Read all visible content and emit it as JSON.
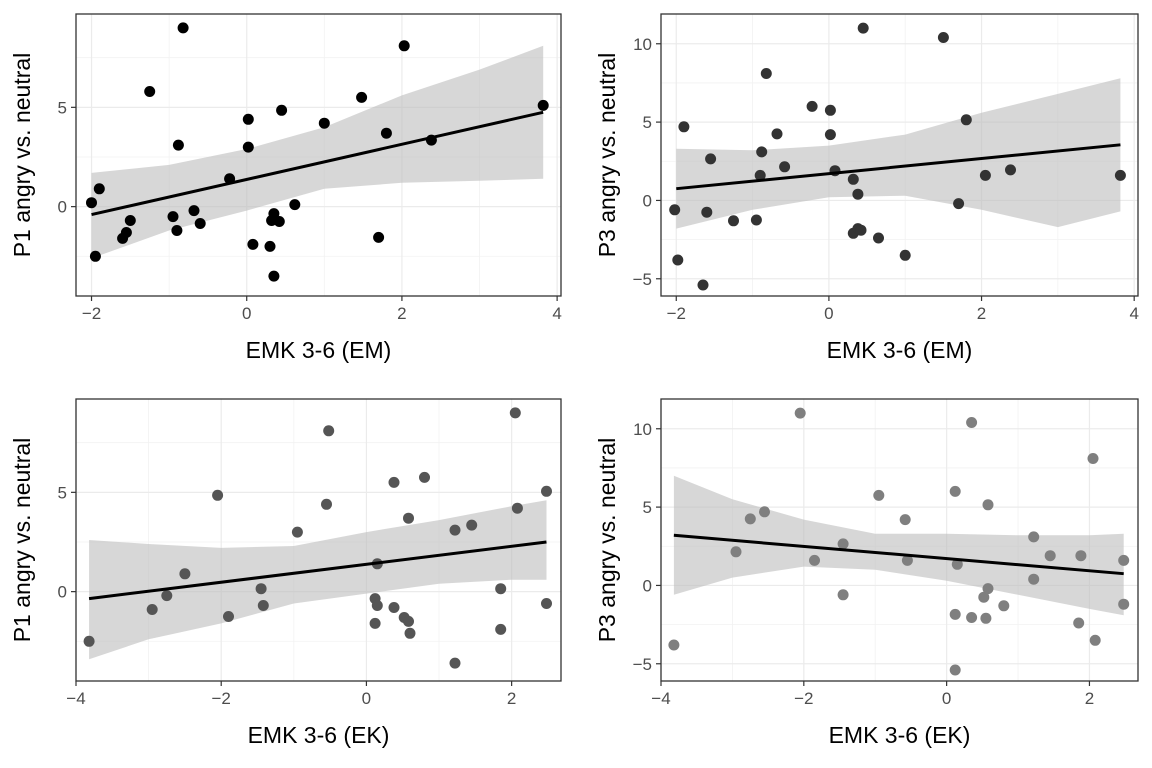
{
  "chart_data": [
    {
      "type": "scatter",
      "xlabel": "EMK 3-6 (EM)",
      "ylabel": "P1 angry vs. neutral",
      "xlim": [
        -2.2,
        4.05
      ],
      "ylim": [
        -4.5,
        9.7
      ],
      "xticks": [
        -2,
        0,
        2,
        4
      ],
      "yticks": [
        0,
        5
      ],
      "grid": true,
      "point_color": "#000000",
      "points": [
        [
          -2.0,
          0.2
        ],
        [
          -1.95,
          -2.5
        ],
        [
          -1.9,
          0.9
        ],
        [
          -1.6,
          -1.6
        ],
        [
          -1.55,
          -1.3
        ],
        [
          -1.5,
          -0.7
        ],
        [
          -1.25,
          5.8
        ],
        [
          -0.95,
          -0.5
        ],
        [
          -0.9,
          -1.2
        ],
        [
          -0.88,
          3.1
        ],
        [
          -0.82,
          9.0
        ],
        [
          -0.68,
          -0.2
        ],
        [
          -0.6,
          -0.85
        ],
        [
          -0.22,
          1.4
        ],
        [
          0.02,
          4.4
        ],
        [
          0.02,
          3.0
        ],
        [
          0.08,
          -1.9
        ],
        [
          0.3,
          -2.0
        ],
        [
          0.32,
          -0.7
        ],
        [
          0.35,
          -0.35
        ],
        [
          0.35,
          -3.5
        ],
        [
          0.42,
          -0.75
        ],
        [
          0.45,
          4.85
        ],
        [
          0.62,
          0.1
        ],
        [
          1.0,
          4.2
        ],
        [
          1.48,
          5.5
        ],
        [
          1.7,
          -1.55
        ],
        [
          1.8,
          3.7
        ],
        [
          2.03,
          8.1
        ],
        [
          2.38,
          3.35
        ],
        [
          3.82,
          5.1
        ]
      ],
      "fit": {
        "x": [
          -2.0,
          3.82
        ],
        "y": [
          -0.4,
          4.75
        ]
      },
      "band": {
        "x": [
          -2.0,
          -1.0,
          0.0,
          1.0,
          2.0,
          3.0,
          3.82
        ],
        "upper": [
          1.7,
          2.1,
          2.9,
          4.0,
          5.6,
          6.9,
          8.1
        ],
        "lower": [
          -2.6,
          -1.2,
          -0.2,
          0.9,
          1.2,
          1.3,
          1.4
        ]
      }
    },
    {
      "type": "scatter",
      "xlabel": "EMK 3-6 (EM)",
      "ylabel": "P3 angry vs. neutral",
      "xlim": [
        -2.2,
        4.05
      ],
      "ylim": [
        -6.1,
        11.9
      ],
      "xticks": [
        -2,
        0,
        2,
        4
      ],
      "yticks": [
        -5,
        0,
        5,
        10
      ],
      "grid": true,
      "point_color": "#333333",
      "points": [
        [
          -2.02,
          -0.6
        ],
        [
          -1.98,
          -3.8
        ],
        [
          -1.9,
          4.7
        ],
        [
          -1.65,
          -5.4
        ],
        [
          -1.6,
          -0.75
        ],
        [
          -1.55,
          2.65
        ],
        [
          -1.25,
          -1.3
        ],
        [
          -0.95,
          -1.25
        ],
        [
          -0.9,
          1.6
        ],
        [
          -0.88,
          3.1
        ],
        [
          -0.82,
          8.1
        ],
        [
          -0.68,
          4.25
        ],
        [
          -0.58,
          2.15
        ],
        [
          -0.22,
          6.0
        ],
        [
          0.02,
          5.75
        ],
        [
          0.02,
          4.2
        ],
        [
          0.08,
          1.9
        ],
        [
          0.32,
          1.35
        ],
        [
          0.32,
          -2.1
        ],
        [
          0.38,
          -1.8
        ],
        [
          0.38,
          0.4
        ],
        [
          0.42,
          -1.9
        ],
        [
          0.45,
          11.0
        ],
        [
          0.65,
          -2.4
        ],
        [
          1.0,
          -3.5
        ],
        [
          1.5,
          10.4
        ],
        [
          1.7,
          -0.2
        ],
        [
          1.8,
          5.15
        ],
        [
          2.05,
          1.6
        ],
        [
          2.38,
          1.95
        ],
        [
          3.82,
          1.6
        ]
      ],
      "fit": {
        "x": [
          -2.0,
          3.82
        ],
        "y": [
          0.75,
          3.55
        ]
      },
      "band": {
        "x": [
          -2.0,
          -1.0,
          0.0,
          1.0,
          2.0,
          3.0,
          3.82
        ],
        "upper": [
          3.3,
          3.2,
          3.5,
          4.2,
          5.6,
          6.8,
          7.8
        ],
        "lower": [
          -1.8,
          -0.6,
          0.2,
          0.3,
          -0.6,
          -1.7,
          -0.7
        ]
      }
    },
    {
      "type": "scatter",
      "xlabel": "EMK 3-6 (EK)",
      "ylabel": "P1 angry vs. neutral",
      "xlim": [
        -4.0,
        2.68
      ],
      "ylim": [
        -4.5,
        9.7
      ],
      "xticks": [
        -4,
        -2,
        0,
        2
      ],
      "yticks": [
        0,
        5
      ],
      "grid": true,
      "point_color": "#555555",
      "points": [
        [
          -3.82,
          -2.5
        ],
        [
          -2.95,
          -0.9
        ],
        [
          -2.75,
          -0.2
        ],
        [
          -2.5,
          0.9
        ],
        [
          -1.9,
          -1.25
        ],
        [
          -2.05,
          4.85
        ],
        [
          -1.45,
          0.15
        ],
        [
          -1.42,
          -0.7
        ],
        [
          -0.95,
          3.0
        ],
        [
          -0.55,
          4.4
        ],
        [
          -0.52,
          8.1
        ],
        [
          0.12,
          -0.35
        ],
        [
          0.12,
          -1.6
        ],
        [
          0.15,
          1.4
        ],
        [
          0.15,
          -0.7
        ],
        [
          0.38,
          -0.8
        ],
        [
          0.38,
          5.5
        ],
        [
          0.52,
          -1.3
        ],
        [
          0.58,
          -1.5
        ],
        [
          0.6,
          -2.1
        ],
        [
          0.58,
          3.7
        ],
        [
          0.8,
          5.75
        ],
        [
          1.22,
          3.1
        ],
        [
          1.22,
          -3.6
        ],
        [
          1.45,
          3.35
        ],
        [
          1.85,
          0.15
        ],
        [
          1.85,
          -1.9
        ],
        [
          2.05,
          9.0
        ],
        [
          2.08,
          4.2
        ],
        [
          2.48,
          5.05
        ],
        [
          2.48,
          -0.6
        ]
      ],
      "fit": {
        "x": [
          -3.82,
          2.48
        ],
        "y": [
          -0.35,
          2.5
        ]
      },
      "band": {
        "x": [
          -3.82,
          -3.0,
          -2.0,
          -1.0,
          0.0,
          1.0,
          2.0,
          2.48
        ],
        "upper": [
          2.6,
          2.4,
          2.2,
          2.3,
          3.0,
          3.6,
          4.3,
          4.6
        ],
        "lower": [
          -3.4,
          -2.4,
          -1.6,
          -0.6,
          -0.1,
          0.4,
          0.6,
          0.6
        ]
      }
    },
    {
      "type": "scatter",
      "xlabel": "EMK 3-6 (EK)",
      "ylabel": "P3 angry vs. neutral",
      "xlim": [
        -4.0,
        2.68
      ],
      "ylim": [
        -6.1,
        11.9
      ],
      "xticks": [
        -4,
        -2,
        0,
        2
      ],
      "yticks": [
        -5,
        0,
        5,
        10
      ],
      "grid": true,
      "point_color": "#7f7f7f",
      "points": [
        [
          -3.82,
          -3.8
        ],
        [
          -2.95,
          2.15
        ],
        [
          -2.75,
          4.25
        ],
        [
          -2.55,
          4.7
        ],
        [
          -2.05,
          11.0
        ],
        [
          -1.85,
          1.6
        ],
        [
          -1.45,
          -0.6
        ],
        [
          -1.45,
          2.65
        ],
        [
          -0.95,
          5.75
        ],
        [
          -0.58,
          4.2
        ],
        [
          -0.55,
          1.6
        ],
        [
          0.12,
          -5.4
        ],
        [
          0.12,
          -1.85
        ],
        [
          0.12,
          6.0
        ],
        [
          0.15,
          1.35
        ],
        [
          0.35,
          -2.05
        ],
        [
          0.35,
          10.4
        ],
        [
          0.52,
          -0.75
        ],
        [
          0.55,
          -2.1
        ],
        [
          0.58,
          5.15
        ],
        [
          0.58,
          -0.2
        ],
        [
          0.8,
          -1.3
        ],
        [
          1.22,
          3.1
        ],
        [
          1.22,
          0.4
        ],
        [
          1.45,
          1.9
        ],
        [
          1.85,
          -2.4
        ],
        [
          1.88,
          1.9
        ],
        [
          2.05,
          8.1
        ],
        [
          2.08,
          -3.5
        ],
        [
          2.48,
          1.6
        ],
        [
          2.48,
          -1.2
        ]
      ],
      "fit": {
        "x": [
          -3.82,
          2.48
        ],
        "y": [
          3.2,
          0.75
        ]
      },
      "band": {
        "x": [
          -3.82,
          -3.0,
          -2.0,
          -1.0,
          0.0,
          1.0,
          2.0,
          2.48
        ],
        "upper": [
          7.0,
          5.5,
          4.2,
          3.3,
          3.3,
          3.2,
          3.2,
          3.3
        ],
        "lower": [
          -0.6,
          0.5,
          1.2,
          1.0,
          0.3,
          -0.6,
          -1.5,
          -1.9
        ]
      }
    }
  ]
}
